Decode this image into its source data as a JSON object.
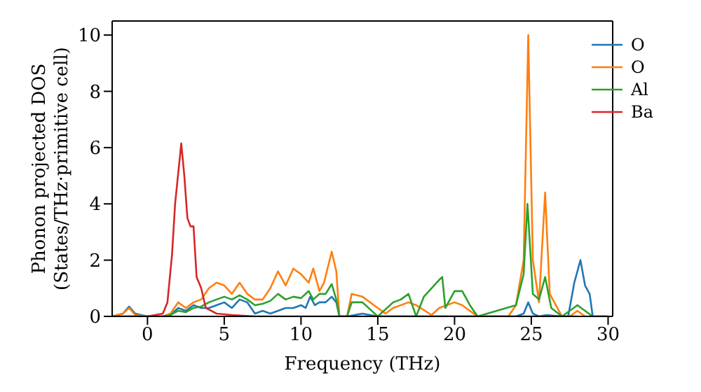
{
  "chart_data": {
    "type": "line",
    "xlabel": "Frequency (THz)",
    "ylabel": "Phonon projected DOS\n(States/THz·primitive cell)",
    "xlim": [
      -2.3,
      30.3
    ],
    "ylim": [
      0,
      10.5
    ],
    "xticks": [
      0,
      5,
      10,
      15,
      20,
      25,
      30
    ],
    "yticks": [
      0,
      2,
      4,
      6,
      8,
      10
    ],
    "legend": "top right",
    "grid": false,
    "marker": "none",
    "line_style": "solid",
    "series": [
      {
        "name": "O",
        "color": "#1f77b4",
        "x": [
          -2.3,
          -1.6,
          -1.2,
          -0.8,
          0,
          1,
          1.5,
          2,
          2.5,
          3,
          3.5,
          4,
          4.5,
          5,
          5.5,
          6,
          6.5,
          7,
          7.5,
          8,
          8.5,
          9,
          9.5,
          10,
          10.3,
          10.6,
          10.9,
          11.2,
          11.6,
          12,
          12.3,
          12.5,
          13,
          14,
          15,
          16,
          24,
          24.5,
          24.8,
          25.1,
          25.5,
          26,
          27,
          27.4,
          27.8,
          28.2,
          28.5,
          28.8,
          29,
          30
        ],
        "values": [
          0,
          0.1,
          0.35,
          0.1,
          0,
          0,
          0.05,
          0.3,
          0.2,
          0.4,
          0.3,
          0.3,
          0.4,
          0.5,
          0.3,
          0.6,
          0.5,
          0.1,
          0.2,
          0.1,
          0.2,
          0.3,
          0.3,
          0.4,
          0.3,
          0.7,
          0.4,
          0.5,
          0.5,
          0.7,
          0.5,
          0,
          0,
          0.1,
          0,
          0,
          0,
          0.1,
          0.5,
          0.1,
          0,
          0.05,
          0,
          0,
          1.2,
          2.0,
          1.1,
          0.8,
          0,
          0
        ]
      },
      {
        "name": "O",
        "color": "#ff7f0e",
        "x": [
          -2.3,
          -1.6,
          -1.2,
          -0.8,
          0,
          1,
          1.5,
          2,
          2.5,
          3,
          3.5,
          4,
          4.5,
          5,
          5.5,
          6,
          6.5,
          7,
          7.5,
          8,
          8.5,
          9,
          9.5,
          10,
          10.5,
          10.8,
          11.2,
          11.5,
          12,
          12.3,
          12.5,
          13,
          13.3,
          14,
          15,
          15.5,
          16,
          17,
          17.5,
          18.5,
          19,
          20,
          20.5,
          21.5,
          23.5,
          24,
          24.5,
          24.8,
          25.1,
          25.5,
          25.9,
          26.2,
          27,
          27.5,
          28,
          28.5,
          30
        ],
        "values": [
          0,
          0.1,
          0.3,
          0.05,
          0,
          0,
          0.1,
          0.5,
          0.3,
          0.5,
          0.6,
          1.0,
          1.2,
          1.1,
          0.8,
          1.2,
          0.8,
          0.6,
          0.6,
          1.0,
          1.6,
          1.1,
          1.7,
          1.5,
          1.2,
          1.7,
          0.9,
          1.2,
          2.3,
          1.6,
          0,
          0,
          0.8,
          0.7,
          0.3,
          0.1,
          0.3,
          0.5,
          0.4,
          0.05,
          0.3,
          0.5,
          0.4,
          0,
          0,
          0.4,
          2.0,
          10.0,
          2.0,
          0.5,
          4.4,
          0.8,
          0,
          0,
          0.2,
          0,
          0
        ]
      },
      {
        "name": "Al",
        "color": "#2ca02c",
        "x": [
          -2.3,
          0,
          1,
          1.5,
          2,
          2.5,
          3,
          3.5,
          4,
          4.5,
          5,
          5.5,
          6,
          6.5,
          7,
          7.5,
          8,
          8.5,
          9,
          9.5,
          10,
          10.5,
          10.8,
          11.2,
          11.6,
          12,
          12.3,
          12.5,
          13,
          13.3,
          14,
          15,
          16,
          16.5,
          17,
          17.5,
          18,
          19,
          19.2,
          19.4,
          20,
          20.5,
          21,
          21.5,
          24,
          24.5,
          24.75,
          25.1,
          25.5,
          25.9,
          26.3,
          27,
          28,
          28.5,
          29,
          30
        ],
        "values": [
          0,
          0,
          0,
          0.05,
          0.2,
          0.15,
          0.3,
          0.35,
          0.5,
          0.6,
          0.7,
          0.6,
          0.75,
          0.6,
          0.4,
          0.45,
          0.55,
          0.8,
          0.6,
          0.7,
          0.65,
          0.9,
          0.6,
          0.8,
          0.8,
          1.15,
          0.6,
          0,
          0,
          0.5,
          0.5,
          0,
          0.5,
          0.6,
          0.8,
          0,
          0.7,
          1.3,
          1.4,
          0.3,
          0.9,
          0.9,
          0.4,
          0,
          0.4,
          1.5,
          4.0,
          0.8,
          0.6,
          1.4,
          0.3,
          0,
          0.4,
          0.2,
          0,
          0
        ]
      },
      {
        "name": "Ba",
        "color": "#d62728",
        "x": [
          -2.3,
          0,
          1,
          1.3,
          1.6,
          1.8,
          2.2,
          2.4,
          2.6,
          2.8,
          3.0,
          3.2,
          3.5,
          3.8,
          4.5,
          5.5,
          7,
          28
        ],
        "values": [
          0,
          0,
          0.1,
          0.5,
          2.2,
          4.0,
          6.15,
          5.0,
          3.5,
          3.2,
          3.2,
          1.4,
          1.0,
          0.3,
          0.1,
          0.05,
          0,
          0
        ]
      }
    ]
  }
}
